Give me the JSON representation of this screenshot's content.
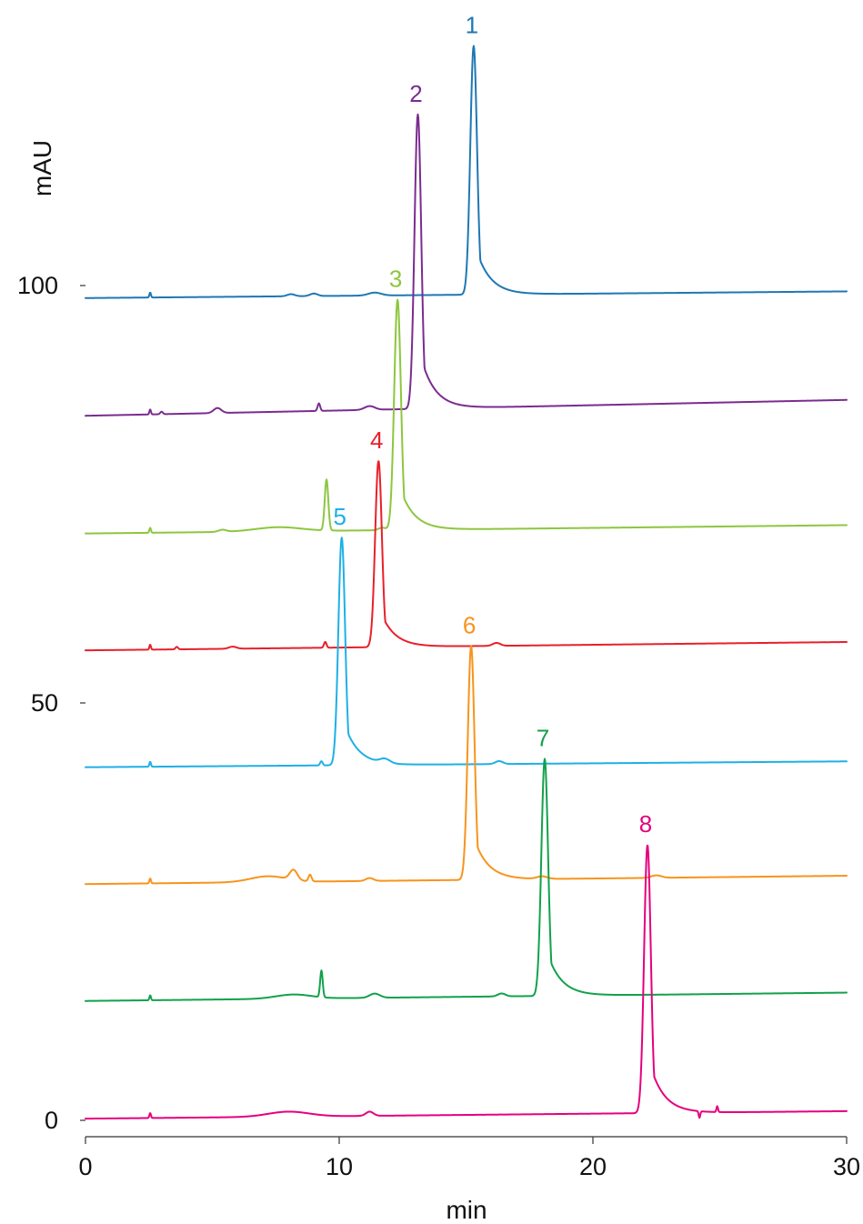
{
  "chart_data": {
    "type": "line",
    "title": "",
    "xlabel": "min",
    "ylabel": "mAU",
    "xlim": [
      0,
      30
    ],
    "ylim": [
      0,
      100
    ],
    "x_ticks": [
      "0",
      "10",
      "20",
      "30"
    ],
    "y_ticks": [
      "0",
      "50",
      "100"
    ],
    "grid": false,
    "legend": "none",
    "series": [
      {
        "name": "1",
        "color": "#1f77b4",
        "baseline_start": 98.5,
        "baseline_end": 99.3,
        "peak": {
          "x": 15.3,
          "y": 128.7,
          "width": 0.17,
          "tail": 0.55
        },
        "features": [
          {
            "x": 2.55,
            "h": 0.6,
            "w": 0.03
          },
          {
            "x": 8.1,
            "h": 0.25,
            "w": 0.15
          },
          {
            "x": 9.0,
            "h": 0.3,
            "w": 0.15
          },
          {
            "x": 11.4,
            "h": 0.35,
            "w": 0.25
          }
        ]
      },
      {
        "name": "2",
        "color": "#7b2c8f",
        "baseline_start": 84.4,
        "baseline_end": 86.3,
        "peak": {
          "x": 13.1,
          "y": 120.5,
          "width": 0.17,
          "tail": 0.55
        },
        "features": [
          {
            "x": 2.55,
            "h": 0.6,
            "w": 0.03
          },
          {
            "x": 3.0,
            "h": 0.3,
            "w": 0.05
          },
          {
            "x": 5.2,
            "h": 0.6,
            "w": 0.15
          },
          {
            "x": 9.2,
            "h": 0.9,
            "w": 0.05
          },
          {
            "x": 11.2,
            "h": 0.45,
            "w": 0.2
          }
        ]
      },
      {
        "name": "3",
        "color": "#8dc63f",
        "baseline_start": 70.3,
        "baseline_end": 71.3,
        "peak": {
          "x": 12.3,
          "y": 98.3,
          "width": 0.17,
          "tail": 0.55
        },
        "features": [
          {
            "x": 2.55,
            "h": 0.6,
            "w": 0.03
          },
          {
            "x": 5.4,
            "h": 0.25,
            "w": 0.15
          },
          {
            "x": 7.6,
            "h": 0.5,
            "w": 0.9
          },
          {
            "x": 9.5,
            "h": 6.1,
            "w": 0.07
          },
          {
            "x": 11.7,
            "h": 0.3,
            "w": 0.15
          }
        ]
      },
      {
        "name": "4",
        "color": "#e8202a",
        "baseline_start": 56.3,
        "baseline_end": 57.3,
        "peak": {
          "x": 11.55,
          "y": 79.0,
          "width": 0.17,
          "tail": 0.55
        },
        "features": [
          {
            "x": 2.55,
            "h": 0.6,
            "w": 0.03
          },
          {
            "x": 3.6,
            "h": 0.3,
            "w": 0.05
          },
          {
            "x": 5.8,
            "h": 0.25,
            "w": 0.15
          },
          {
            "x": 9.45,
            "h": 0.7,
            "w": 0.05
          },
          {
            "x": 16.2,
            "h": 0.35,
            "w": 0.15
          }
        ]
      },
      {
        "name": "5",
        "color": "#1eb0e6",
        "baseline_start": 42.3,
        "baseline_end": 43.0,
        "peak": {
          "x": 10.1,
          "y": 69.8,
          "width": 0.17,
          "tail": 0.55
        },
        "features": [
          {
            "x": 2.55,
            "h": 0.6,
            "w": 0.03
          },
          {
            "x": 9.3,
            "h": 0.5,
            "w": 0.05
          },
          {
            "x": 11.8,
            "h": 0.5,
            "w": 0.2
          },
          {
            "x": 16.3,
            "h": 0.35,
            "w": 0.15
          }
        ]
      },
      {
        "name": "6",
        "color": "#f7941d",
        "baseline_start": 28.3,
        "baseline_end": 29.3,
        "peak": {
          "x": 15.2,
          "y": 56.8,
          "width": 0.17,
          "tail": 0.55
        },
        "features": [
          {
            "x": 2.55,
            "h": 0.6,
            "w": 0.03
          },
          {
            "x": 7.2,
            "h": 0.7,
            "w": 0.7
          },
          {
            "x": 8.2,
            "h": 1.2,
            "w": 0.15
          },
          {
            "x": 8.85,
            "h": 0.8,
            "w": 0.06
          },
          {
            "x": 11.2,
            "h": 0.35,
            "w": 0.15
          },
          {
            "x": 18.0,
            "h": 0.3,
            "w": 0.2
          },
          {
            "x": 22.5,
            "h": 0.3,
            "w": 0.2
          }
        ]
      },
      {
        "name": "7",
        "color": "#12a14b",
        "baseline_start": 14.3,
        "baseline_end": 15.3,
        "peak": {
          "x": 18.1,
          "y": 43.3,
          "width": 0.17,
          "tail": 0.55
        },
        "features": [
          {
            "x": 2.55,
            "h": 0.6,
            "w": 0.03
          },
          {
            "x": 8.2,
            "h": 0.5,
            "w": 0.7
          },
          {
            "x": 9.3,
            "h": 3.2,
            "w": 0.05
          },
          {
            "x": 11.4,
            "h": 0.5,
            "w": 0.2
          },
          {
            "x": 16.4,
            "h": 0.35,
            "w": 0.15
          }
        ]
      },
      {
        "name": "8",
        "color": "#e6007e",
        "baseline_start": 0.2,
        "baseline_end": 1.1,
        "peak": {
          "x": 22.15,
          "y": 33.0,
          "width": 0.17,
          "tail": 0.55
        },
        "features": [
          {
            "x": 2.55,
            "h": 0.6,
            "w": 0.03
          },
          {
            "x": 8.0,
            "h": 0.6,
            "w": 0.8
          },
          {
            "x": 11.2,
            "h": 0.5,
            "w": 0.15
          },
          {
            "x": 24.2,
            "h": -0.8,
            "w": 0.03
          },
          {
            "x": 24.9,
            "h": 0.7,
            "w": 0.03
          }
        ]
      }
    ],
    "peak_labels": [
      "1",
      "2",
      "3",
      "4",
      "5",
      "6",
      "7",
      "8"
    ]
  }
}
